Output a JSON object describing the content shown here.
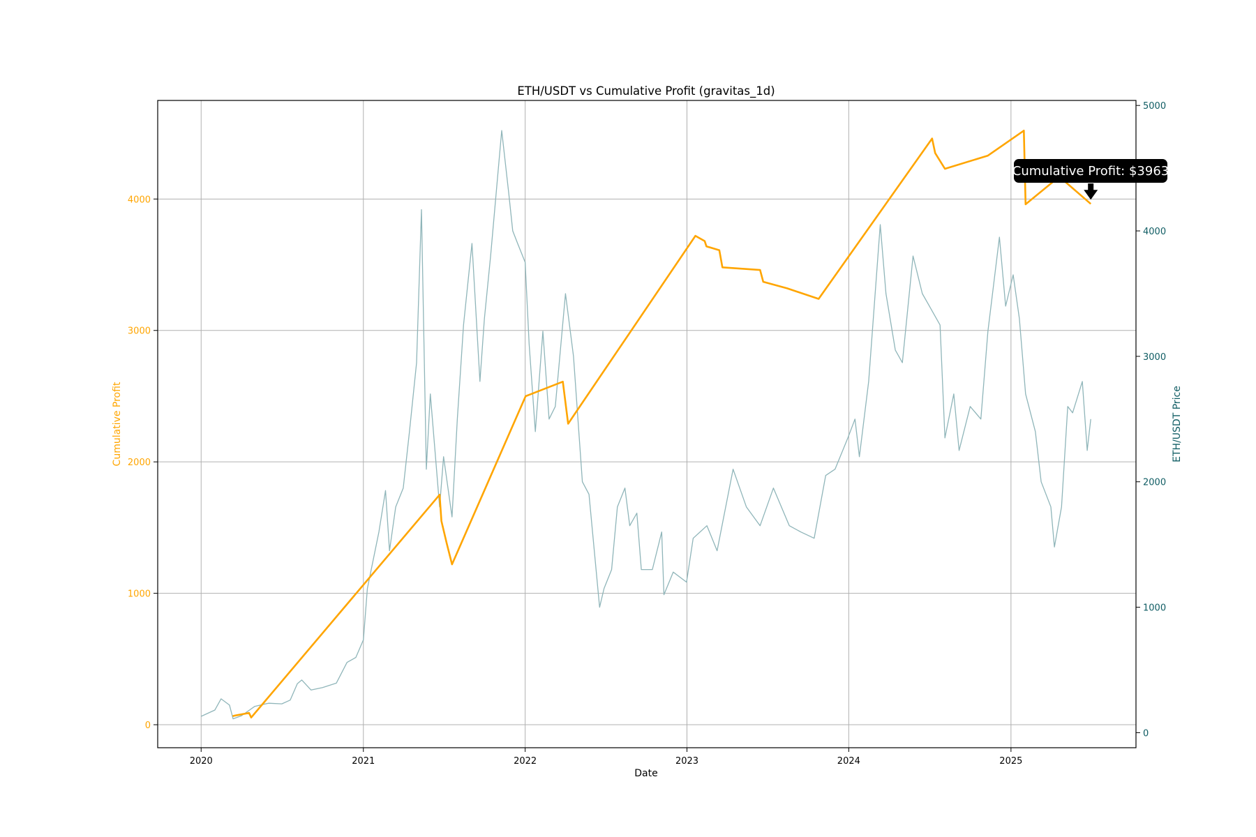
{
  "chart_data": {
    "type": "line",
    "title": "ETH/USDT vs Cumulative Profit (gravitas_1d)",
    "xlabel": "Date",
    "ylabel_left": "Cumulative Profit",
    "ylabel_right": "ETH/USDT Price",
    "x_range": [
      "2019-09-25",
      "2025-10-10"
    ],
    "ylim_left": [
      -175,
      4750
    ],
    "ylim_right": [
      -120,
      5040
    ],
    "x_ticks": [
      {
        "date": "2020-01-01",
        "label": "2020"
      },
      {
        "date": "2021-01-01",
        "label": "2021"
      },
      {
        "date": "2022-01-01",
        "label": "2022"
      },
      {
        "date": "2023-01-01",
        "label": "2023"
      },
      {
        "date": "2024-01-01",
        "label": "2024"
      },
      {
        "date": "2025-01-01",
        "label": "2025"
      }
    ],
    "y_ticks_left": [
      0,
      1000,
      2000,
      3000,
      4000
    ],
    "y_ticks_right": [
      0,
      1000,
      2000,
      3000,
      4000,
      5000
    ],
    "grid": true,
    "colors": {
      "profit": "#FFA500",
      "price": "#8fb5b9",
      "right_axis": "#0f5c63",
      "grid": "#b0b0b0",
      "annotation_bg": "#000000"
    },
    "annotation": {
      "text": "Cumulative Profit: $3963",
      "date": "2025-06-30",
      "value": 3963
    },
    "series": [
      {
        "axis": "left",
        "points": [
          [
            "2020-03-12",
            65
          ],
          [
            "2020-03-18",
            70
          ],
          [
            "2020-04-18",
            90
          ],
          [
            "2020-04-23",
            55
          ],
          [
            "2021-06-22",
            1750
          ],
          [
            "2021-06-26",
            1550
          ],
          [
            "2021-07-08",
            1380
          ],
          [
            "2021-07-20",
            1220
          ],
          [
            "2022-01-02",
            2500
          ],
          [
            "2022-03-27",
            2610
          ],
          [
            "2022-04-08",
            2290
          ],
          [
            "2023-01-20",
            3720
          ],
          [
            "2023-02-10",
            3680
          ],
          [
            "2023-02-14",
            3640
          ],
          [
            "2023-03-15",
            3610
          ],
          [
            "2023-03-22",
            3480
          ],
          [
            "2023-06-15",
            3460
          ],
          [
            "2023-06-22",
            3370
          ],
          [
            "2023-08-15",
            3320
          ],
          [
            "2023-10-25",
            3240
          ],
          [
            "2024-07-07",
            4460
          ],
          [
            "2024-07-14",
            4350
          ],
          [
            "2024-08-05",
            4230
          ],
          [
            "2024-11-10",
            4330
          ],
          [
            "2025-01-30",
            4520
          ],
          [
            "2025-02-03",
            3960
          ],
          [
            "2025-04-20",
            4170
          ],
          [
            "2025-06-30",
            3963
          ]
        ]
      },
      {
        "axis": "right",
        "points": [
          [
            "2020-01-01",
            130
          ],
          [
            "2020-02-01",
            180
          ],
          [
            "2020-02-15",
            270
          ],
          [
            "2020-03-05",
            220
          ],
          [
            "2020-03-13",
            110
          ],
          [
            "2020-04-01",
            135
          ],
          [
            "2020-05-01",
            210
          ],
          [
            "2020-06-01",
            235
          ],
          [
            "2020-07-01",
            230
          ],
          [
            "2020-07-20",
            260
          ],
          [
            "2020-08-05",
            390
          ],
          [
            "2020-08-15",
            420
          ],
          [
            "2020-09-05",
            340
          ],
          [
            "2020-10-01",
            360
          ],
          [
            "2020-11-01",
            395
          ],
          [
            "2020-11-25",
            560
          ],
          [
            "2020-12-15",
            600
          ],
          [
            "2021-01-01",
            740
          ],
          [
            "2021-01-10",
            1150
          ],
          [
            "2021-02-05",
            1600
          ],
          [
            "2021-02-20",
            1930
          ],
          [
            "2021-03-01",
            1450
          ],
          [
            "2021-03-15",
            1800
          ],
          [
            "2021-04-01",
            1950
          ],
          [
            "2021-04-15",
            2400
          ],
          [
            "2021-05-01",
            2950
          ],
          [
            "2021-05-12",
            4170
          ],
          [
            "2021-05-23",
            2100
          ],
          [
            "2021-06-01",
            2700
          ],
          [
            "2021-06-22",
            1800
          ],
          [
            "2021-07-01",
            2200
          ],
          [
            "2021-07-20",
            1720
          ],
          [
            "2021-08-01",
            2500
          ],
          [
            "2021-08-15",
            3250
          ],
          [
            "2021-09-03",
            3900
          ],
          [
            "2021-09-21",
            2800
          ],
          [
            "2021-10-01",
            3300
          ],
          [
            "2021-10-15",
            3800
          ],
          [
            "2021-11-09",
            4800
          ],
          [
            "2021-11-25",
            4300
          ],
          [
            "2021-12-04",
            4000
          ],
          [
            "2021-12-15",
            3900
          ],
          [
            "2022-01-01",
            3750
          ],
          [
            "2022-01-10",
            3100
          ],
          [
            "2022-01-24",
            2400
          ],
          [
            "2022-02-10",
            3200
          ],
          [
            "2022-02-24",
            2500
          ],
          [
            "2022-03-10",
            2600
          ],
          [
            "2022-04-02",
            3500
          ],
          [
            "2022-04-20",
            3000
          ],
          [
            "2022-05-10",
            2000
          ],
          [
            "2022-05-25",
            1900
          ],
          [
            "2022-06-18",
            1000
          ],
          [
            "2022-06-28",
            1150
          ],
          [
            "2022-07-15",
            1300
          ],
          [
            "2022-07-28",
            1800
          ],
          [
            "2022-08-14",
            1950
          ],
          [
            "2022-08-25",
            1650
          ],
          [
            "2022-09-10",
            1750
          ],
          [
            "2022-09-20",
            1300
          ],
          [
            "2022-10-15",
            1300
          ],
          [
            "2022-11-05",
            1600
          ],
          [
            "2022-11-10",
            1100
          ],
          [
            "2022-12-01",
            1280
          ],
          [
            "2022-12-31",
            1200
          ],
          [
            "2023-01-15",
            1550
          ],
          [
            "2023-02-15",
            1650
          ],
          [
            "2023-03-10",
            1450
          ],
          [
            "2023-04-15",
            2100
          ],
          [
            "2023-05-15",
            1800
          ],
          [
            "2023-06-15",
            1650
          ],
          [
            "2023-07-15",
            1950
          ],
          [
            "2023-08-20",
            1650
          ],
          [
            "2023-09-15",
            1600
          ],
          [
            "2023-10-15",
            1550
          ],
          [
            "2023-11-10",
            2050
          ],
          [
            "2023-12-01",
            2100
          ],
          [
            "2023-12-30",
            2350
          ],
          [
            "2024-01-15",
            2500
          ],
          [
            "2024-01-25",
            2200
          ],
          [
            "2024-02-15",
            2800
          ],
          [
            "2024-03-12",
            4050
          ],
          [
            "2024-03-25",
            3500
          ],
          [
            "2024-04-15",
            3050
          ],
          [
            "2024-05-01",
            2950
          ],
          [
            "2024-05-25",
            3800
          ],
          [
            "2024-06-15",
            3500
          ],
          [
            "2024-07-01",
            3400
          ],
          [
            "2024-07-25",
            3250
          ],
          [
            "2024-08-05",
            2350
          ],
          [
            "2024-08-25",
            2700
          ],
          [
            "2024-09-06",
            2250
          ],
          [
            "2024-10-01",
            2600
          ],
          [
            "2024-10-25",
            2500
          ],
          [
            "2024-11-10",
            3200
          ],
          [
            "2024-12-06",
            3950
          ],
          [
            "2024-12-20",
            3400
          ],
          [
            "2025-01-06",
            3650
          ],
          [
            "2025-01-20",
            3300
          ],
          [
            "2025-02-03",
            2700
          ],
          [
            "2025-02-25",
            2400
          ],
          [
            "2025-03-10",
            2000
          ],
          [
            "2025-04-01",
            1800
          ],
          [
            "2025-04-09",
            1480
          ],
          [
            "2025-04-25",
            1800
          ],
          [
            "2025-05-09",
            2600
          ],
          [
            "2025-05-20",
            2550
          ],
          [
            "2025-06-11",
            2800
          ],
          [
            "2025-06-22",
            2250
          ],
          [
            "2025-06-30",
            2500
          ]
        ]
      }
    ]
  }
}
